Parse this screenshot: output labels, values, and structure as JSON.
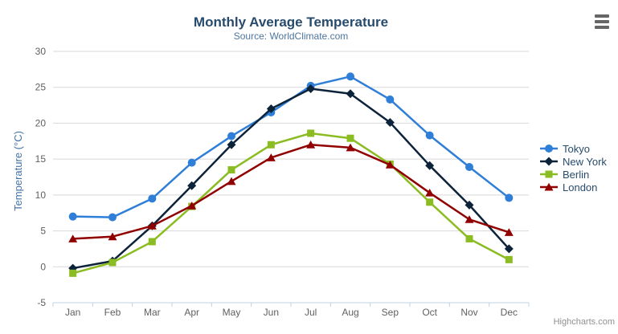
{
  "chart_data": {
    "type": "line",
    "title": "Monthly Average Temperature",
    "subtitle": "Source: WorldClimate.com",
    "xlabel": "",
    "ylabel": "Temperature (°C)",
    "ylim": [
      -5,
      30
    ],
    "ytick_step": 5,
    "grid": true,
    "legend_position": "right",
    "categories": [
      "Jan",
      "Feb",
      "Mar",
      "Apr",
      "May",
      "Jun",
      "Jul",
      "Aug",
      "Sep",
      "Oct",
      "Nov",
      "Dec"
    ],
    "series": [
      {
        "name": "Tokyo",
        "color": "#2f7ed8",
        "marker": "circle",
        "values": [
          7.0,
          6.9,
          9.5,
          14.5,
          18.2,
          21.5,
          25.2,
          26.5,
          23.3,
          18.3,
          13.9,
          9.6
        ]
      },
      {
        "name": "New York",
        "color": "#0d233a",
        "marker": "diamond",
        "values": [
          -0.2,
          0.8,
          5.7,
          11.3,
          17.0,
          22.0,
          24.8,
          24.1,
          20.1,
          14.1,
          8.6,
          2.5
        ]
      },
      {
        "name": "Berlin",
        "color": "#8bbc21",
        "marker": "square",
        "values": [
          -0.9,
          0.6,
          3.5,
          8.4,
          13.5,
          17.0,
          18.6,
          17.9,
          14.3,
          9.0,
          3.9,
          1.0
        ]
      },
      {
        "name": "London",
        "color": "#910000",
        "marker": "triangle",
        "values": [
          3.9,
          4.2,
          5.7,
          8.5,
          11.9,
          15.2,
          17.0,
          16.6,
          14.2,
          10.3,
          6.6,
          4.8
        ]
      }
    ]
  },
  "credits": {
    "label": "Highcharts.com"
  },
  "export_menu": {
    "icon": "hamburger-icon"
  },
  "colors": {
    "background": "#ffffff",
    "title": "#274b6d",
    "subtitle": "#4d759e",
    "axis_labels": "#606060",
    "y_axis_title": "#4572a7",
    "grid_line": "#d8d8d8",
    "axis_line": "#c0d0e0",
    "legend_text": "#274b6d",
    "credits_text": "#909090",
    "menu_icon": "#666666"
  }
}
